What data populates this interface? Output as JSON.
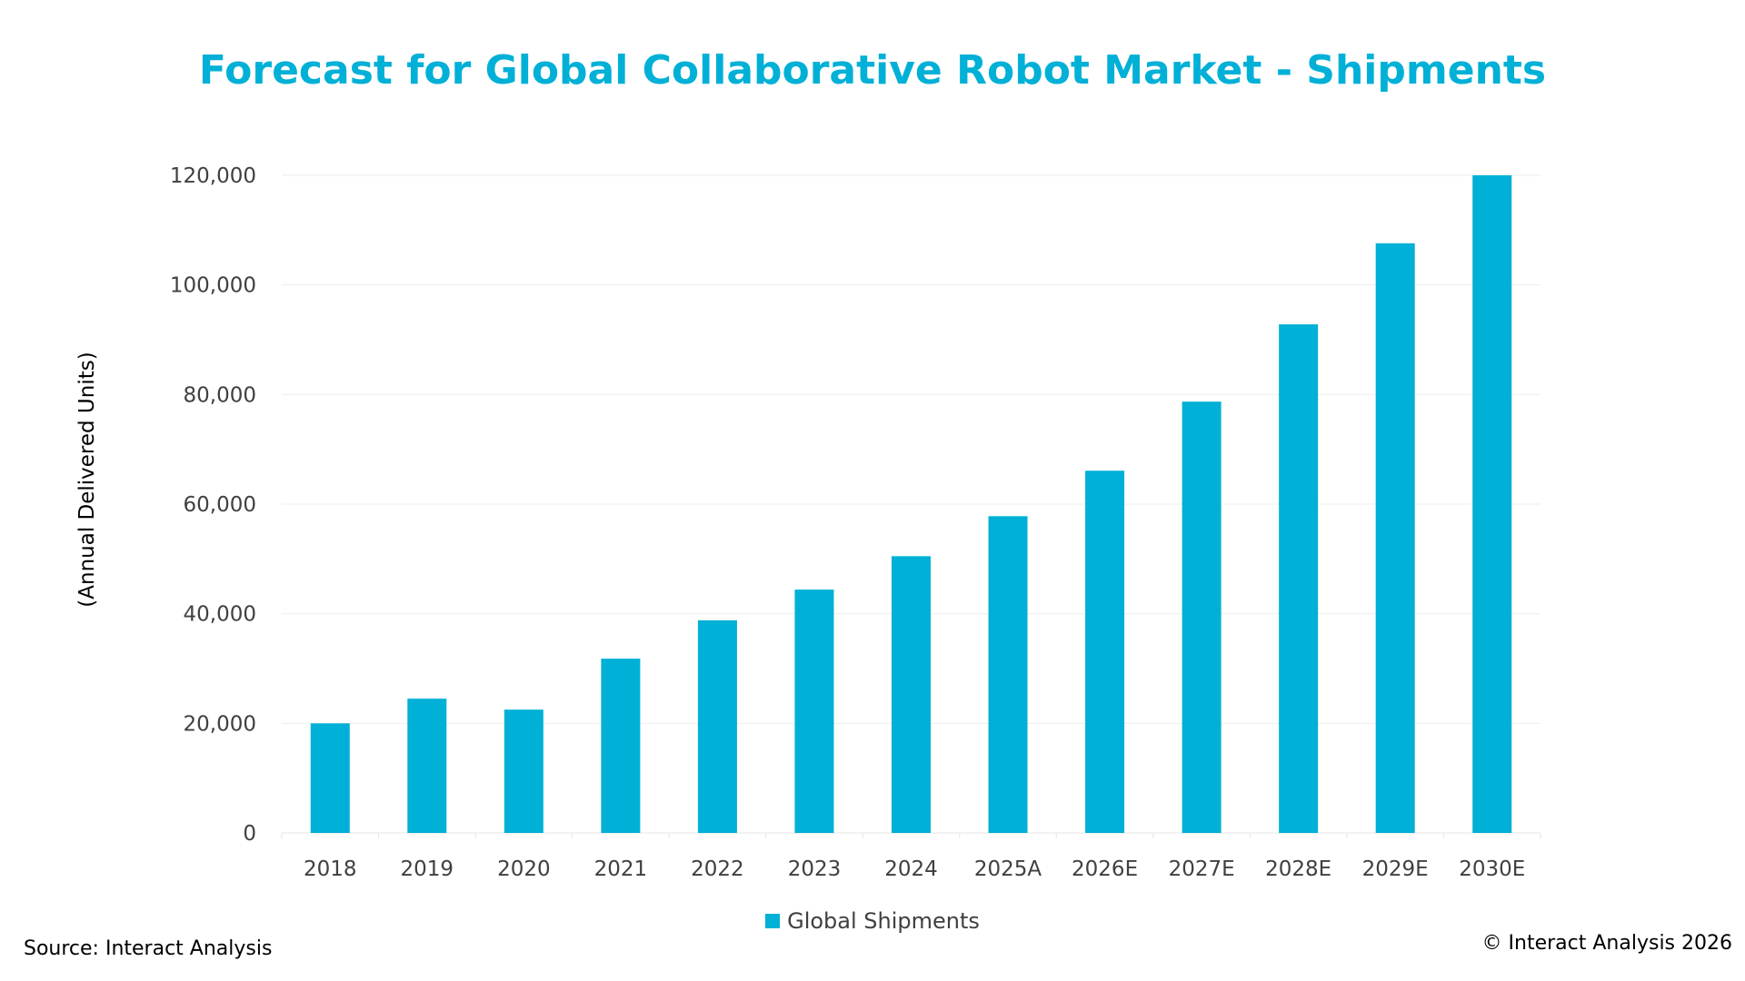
{
  "chart_data": {
    "type": "bar",
    "title": "Forecast for Global Collaborative Robot Market - Shipments",
    "xlabel": "",
    "ylabel": "(Annual Delivered Units)",
    "categories": [
      "2018",
      "2019",
      "2020",
      "2021",
      "2022",
      "2023",
      "2024",
      "2025A",
      "2026E",
      "2027E",
      "2028E",
      "2029E",
      "2030E"
    ],
    "series": [
      {
        "name": "Global Shipments",
        "color": "#00b0d6",
        "values": [
          20000,
          24500,
          22500,
          31800,
          38800,
          44400,
          50500,
          57800,
          66100,
          78700,
          92800,
          107600,
          120000
        ]
      }
    ],
    "ylim": [
      0,
      120000
    ],
    "yticks": [
      "0",
      "20,000",
      "40,000",
      "60,000",
      "80,000",
      "100,000",
      "120,000"
    ],
    "ytick_values": [
      0,
      20000,
      40000,
      60000,
      80000,
      100000,
      120000
    ],
    "grid": true,
    "legend": "bottom-center"
  },
  "footer": {
    "source": "Source: Interact Analysis",
    "copyright": "© Interact Analysis 2026"
  }
}
